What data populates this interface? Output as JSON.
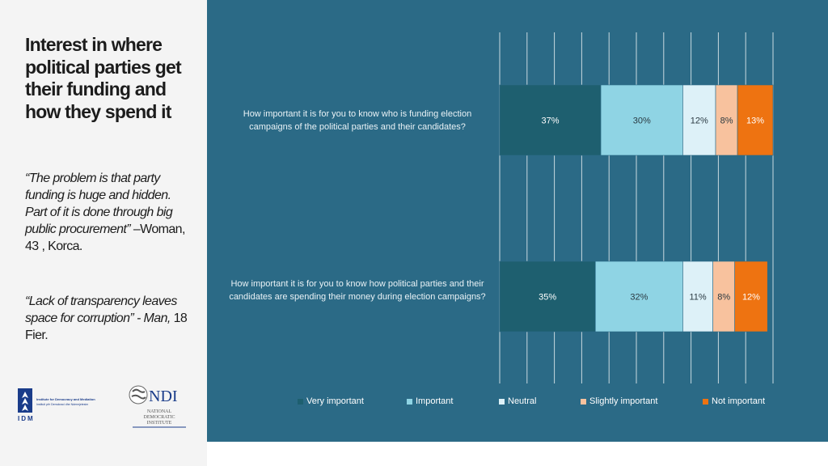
{
  "left": {
    "title": "Interest in where political parties get their  funding and how they spend it",
    "quote1": {
      "text": "“The problem is that party funding is huge and hidden. Part of it is done through big public procurement”",
      "attribution": " –Woman, 43 , Korca."
    },
    "quote2": {
      "text": "“Lack of transparency leaves space for corruption”  - Man,",
      "attribution": " 18 Fier."
    }
  },
  "logos": {
    "idm_line1": "Institute for Democracy and Mediation",
    "idm_line2": "Instituti për Demokraci dhe Ndermjetesim",
    "idm_mark": "IDM",
    "ndi_mark": "NDI",
    "ndi_line1": "NATIONAL",
    "ndi_line2": "DEMOCRATIC",
    "ndi_line3": "INSTITUTE"
  },
  "chart_data": {
    "type": "bar",
    "orientation": "horizontal",
    "stacked": true,
    "categories": [
      "How important it is for you to know who is funding election campaigns of the political parties and their candidates?",
      "How important it is for you to know how political parties and their candidates are spending their money during election campaigns?"
    ],
    "series": [
      {
        "name": "Very important",
        "values": [
          37,
          35
        ],
        "labels": [
          "37%",
          "35%"
        ],
        "color": "#1e5f6f"
      },
      {
        "name": "Important",
        "values": [
          30,
          32
        ],
        "labels": [
          "30%",
          "32%"
        ],
        "color": "#8fd4e4"
      },
      {
        "name": "Neutral",
        "values": [
          12,
          11
        ],
        "labels": [
          "12%",
          "11%"
        ],
        "color": "#ddf1f8"
      },
      {
        "name": "Slightly important",
        "values": [
          8,
          8
        ],
        "labels": [
          "8%",
          "8%"
        ],
        "color": "#f8c29e"
      },
      {
        "name": "Not important",
        "values": [
          13,
          12
        ],
        "labels": [
          "13%",
          "12%"
        ],
        "color": "#ee7311"
      }
    ],
    "xlim": [
      0,
      100
    ],
    "grid": true,
    "legend": "bottom",
    "label_color_dark": "#ffffff",
    "label_color_light": "#2b3a42",
    "label_color_orange": "#ffffff"
  }
}
